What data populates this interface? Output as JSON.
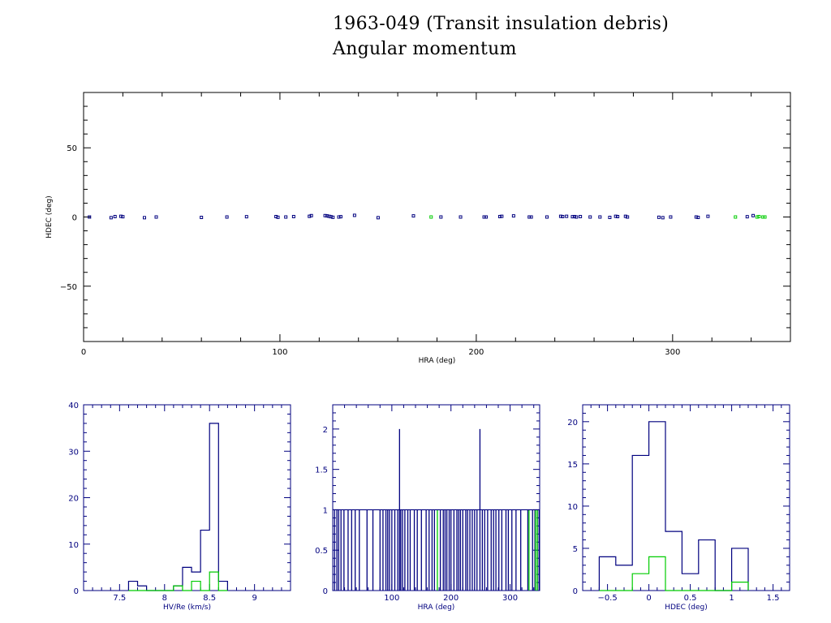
{
  "header": {
    "title": "1963-049 (Transit insulation debris)",
    "subtitle": "Angular momentum"
  },
  "colors": {
    "primary": "#00007f",
    "secondary": "#00cc00",
    "axis": "#000000",
    "hist_axis": "#00007f"
  },
  "chart_data": [
    {
      "type": "scatter",
      "xlabel": "HRA (deg)",
      "ylabel": "HDEC (deg)",
      "xlim": [
        0,
        360
      ],
      "ylim": [
        -90,
        90
      ],
      "xticks": [
        0,
        100,
        200,
        300
      ],
      "yticks": [
        -50,
        0,
        50
      ],
      "series": [
        {
          "color": "#00007f",
          "x": [
            3,
            14,
            16,
            19,
            20,
            31,
            37,
            60,
            73,
            83,
            98,
            99,
            103,
            107,
            115,
            116,
            123,
            124,
            125,
            126,
            127,
            130,
            131,
            138,
            150,
            168,
            182,
            192,
            204,
            205,
            212,
            213,
            219,
            227,
            228,
            236,
            243,
            244,
            246,
            249,
            250,
            251,
            253,
            258,
            263,
            268,
            271,
            272,
            276,
            277,
            293,
            295,
            299,
            312,
            313,
            318,
            338,
            341
          ],
          "y": [
            0,
            -0.5,
            0.3,
            0.5,
            0.2,
            -0.5,
            0,
            -0.3,
            0,
            0.2,
            0.3,
            -0.2,
            0,
            0.3,
            0.5,
            1.0,
            1.0,
            0.8,
            0.5,
            0.2,
            -0.2,
            0,
            0.2,
            1.2,
            -0.5,
            0.8,
            0,
            0,
            0,
            0,
            0.3,
            0.5,
            0.8,
            0,
            0,
            0,
            0.5,
            0.3,
            0.5,
            0.2,
            0.3,
            0,
            0.3,
            0,
            0,
            -0.3,
            0.5,
            0.3,
            0.5,
            0,
            -0.2,
            -0.5,
            0,
            0,
            -0.3,
            0.5,
            0.2,
            1.0
          ]
        },
        {
          "color": "#00cc00",
          "x": [
            177,
            332,
            343,
            344,
            346,
            347
          ],
          "y": [
            0,
            0,
            0,
            0.3,
            0,
            0
          ]
        }
      ]
    },
    {
      "type": "bar",
      "xlabel": "HV/Re (km/s)",
      "ylabel": "",
      "xlim": [
        7.1,
        9.4
      ],
      "ylim": [
        0,
        40
      ],
      "xticks": [
        "7.5",
        "8",
        "8.5",
        "9"
      ],
      "yticks": [
        0,
        10,
        20,
        30,
        40
      ],
      "bin_edges": [
        7.6,
        7.7,
        7.8,
        7.9,
        8.0,
        8.1,
        8.2,
        8.3,
        8.4,
        8.5,
        8.6,
        8.7
      ],
      "series": [
        {
          "color": "#00007f",
          "values": [
            2,
            1,
            0,
            0,
            0,
            1,
            5,
            4,
            13,
            36,
            2
          ]
        },
        {
          "color": "#00cc00",
          "values": [
            0,
            0,
            0,
            0,
            0,
            1,
            0,
            2,
            0,
            4,
            0
          ]
        }
      ]
    },
    {
      "type": "bar",
      "xlabel": "HRA (deg)",
      "ylabel": "",
      "xlim": [
        0,
        350
      ],
      "ylim": [
        0,
        2.3
      ],
      "xticks": [
        "100",
        "200",
        "300"
      ],
      "yticks": [
        "0",
        "0.5",
        "1",
        "1.5",
        "2"
      ],
      "series": [
        {
          "color": "#00007f",
          "x": [
            3,
            7,
            10,
            14,
            19,
            26,
            32,
            38,
            45,
            58,
            68,
            80,
            85,
            90,
            93,
            96,
            100,
            105,
            110,
            113,
            115,
            118,
            122,
            127,
            131,
            138,
            143,
            150,
            158,
            163,
            168,
            172,
            182,
            187,
            190,
            193,
            197,
            200,
            205,
            210,
            213,
            216,
            220,
            225,
            228,
            232,
            236,
            240,
            244,
            249,
            253,
            257,
            262,
            268,
            272,
            276,
            281,
            286,
            293,
            297,
            303,
            310,
            318,
            330,
            338,
            342,
            346,
            349
          ],
          "values": [
            1,
            1,
            1,
            1,
            1,
            1,
            1,
            1,
            1,
            1,
            1,
            1,
            1,
            1,
            1,
            1,
            1,
            1,
            1,
            2,
            1,
            1,
            1,
            1,
            1,
            1,
            1,
            1,
            1,
            1,
            1,
            1,
            1,
            1,
            1,
            1,
            1,
            1,
            1,
            1,
            1,
            1,
            1,
            1,
            1,
            1,
            1,
            1,
            1,
            2,
            1,
            1,
            1,
            1,
            1,
            1,
            1,
            1,
            1,
            1,
            1,
            1,
            1,
            1,
            1,
            1,
            1,
            1
          ]
        },
        {
          "color": "#00cc00",
          "x": [
            177,
            332,
            343,
            346
          ],
          "values": [
            1,
            1,
            1,
            1
          ]
        }
      ]
    },
    {
      "type": "bar",
      "xlabel": "HDEC (deg)",
      "ylabel": "",
      "xlim": [
        -0.8,
        1.7
      ],
      "ylim": [
        0,
        22
      ],
      "xticks": [
        "-0.5",
        "0",
        "0.5",
        "1",
        "1.5"
      ],
      "yticks": [
        0,
        5,
        10,
        15,
        20
      ],
      "bin_edges": [
        -0.6,
        -0.4,
        -0.2,
        0.0,
        0.2,
        0.4,
        0.6,
        0.8,
        1.0,
        1.2
      ],
      "series": [
        {
          "color": "#00007f",
          "values": [
            4,
            3,
            16,
            20,
            7,
            2,
            6,
            0,
            5
          ]
        },
        {
          "color": "#00cc00",
          "values": [
            0,
            0,
            2,
            4,
            0,
            0,
            0,
            0,
            1
          ]
        }
      ]
    }
  ]
}
